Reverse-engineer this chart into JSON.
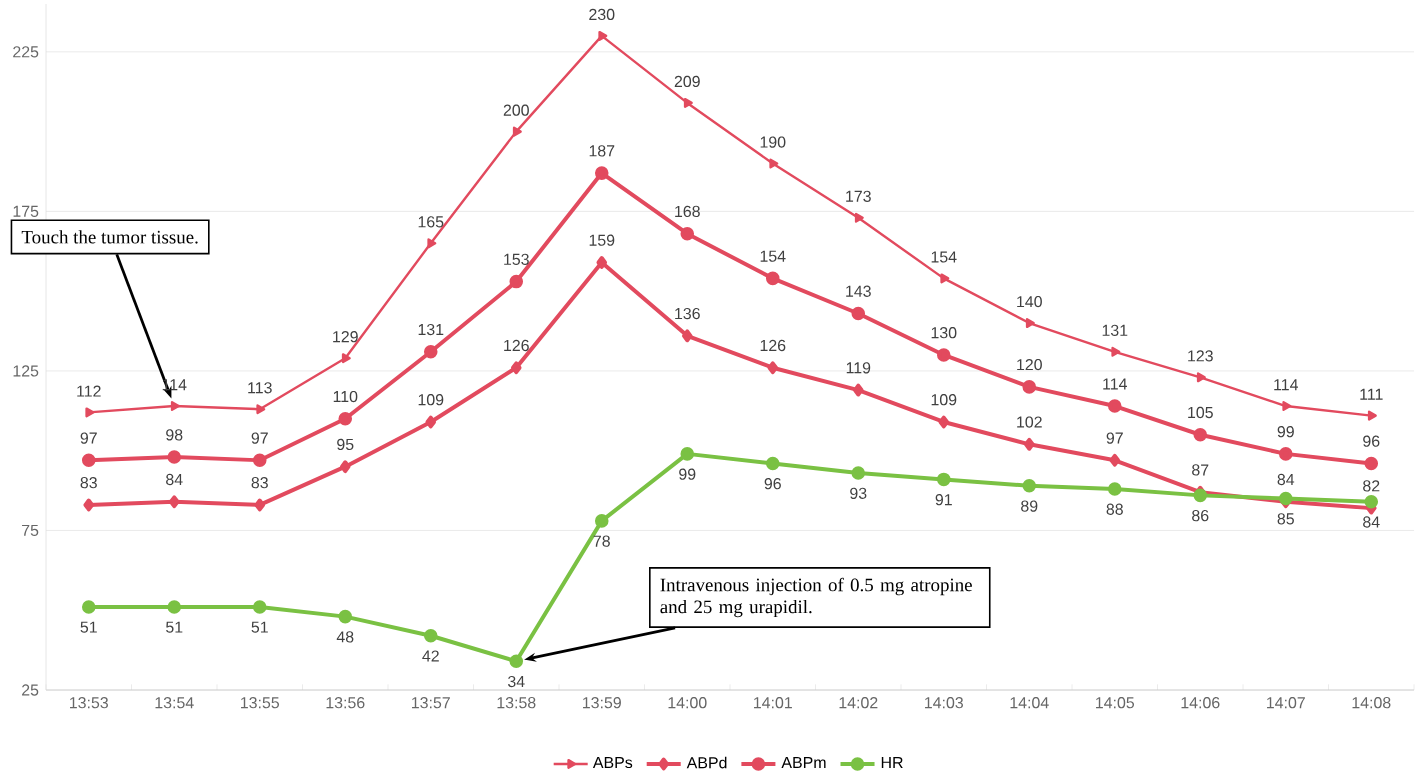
{
  "chart_data": {
    "type": "line",
    "categories": [
      "13:53",
      "13:54",
      "13:55",
      "13:56",
      "13:57",
      "13:58",
      "13:59",
      "14:00",
      "14:01",
      "14:02",
      "14:03",
      "14:04",
      "14:05",
      "14:06",
      "14:07",
      "14:08"
    ],
    "series": [
      {
        "name": "ABPs",
        "color": "#e24a5e",
        "marker": "triangle",
        "values": [
          112,
          114,
          113,
          129,
          165,
          200,
          230,
          209,
          190,
          173,
          154,
          140,
          131,
          123,
          114,
          111
        ]
      },
      {
        "name": "ABPd",
        "color": "#e24a5e",
        "marker": "diamond",
        "values": [
          83,
          84,
          83,
          95,
          109,
          126,
          159,
          136,
          126,
          119,
          109,
          102,
          97,
          87,
          84,
          82
        ]
      },
      {
        "name": "ABPm",
        "color": "#e24a5e",
        "marker": "circle",
        "values": [
          97,
          98,
          97,
          110,
          131,
          153,
          187,
          168,
          154,
          143,
          130,
          120,
          114,
          105,
          99,
          96
        ]
      },
      {
        "name": "HR",
        "color": "#7ac143",
        "marker": "circle",
        "values": [
          51,
          51,
          51,
          48,
          42,
          34,
          78,
          99,
          96,
          93,
          91,
          89,
          88,
          86,
          85,
          84
        ]
      }
    ],
    "ylim": [
      25,
      240
    ],
    "yticks": [
      25,
      75,
      125,
      175,
      225
    ],
    "grid": "y",
    "legend": "bottom",
    "data_labels": true,
    "annotations": [
      {
        "text": "Touch the tumor tissue.",
        "x": "13:54",
        "y": 114
      },
      {
        "text": "Intravenous injection of 0.5 mg atropine and 25 mg urapidil.",
        "x": "13:58",
        "y": 34
      }
    ]
  }
}
